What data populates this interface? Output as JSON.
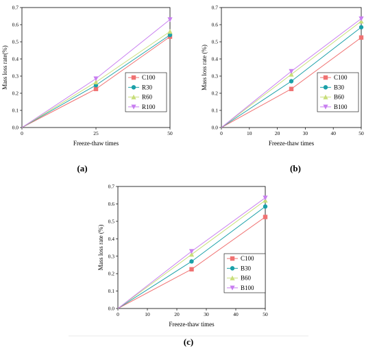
{
  "palette": {
    "C100": "#f07272",
    "R30": "#1aa0a8",
    "R60": "#c8de7a",
    "R100": "#c87ef0",
    "B30": "#1aa0a8",
    "B60": "#c8de7a",
    "B100": "#c87ef0"
  },
  "chart_data": [
    {
      "type": "line",
      "caption": "(a)",
      "xlabel": "Freeze-thaw times",
      "ylabel": "Mass loss rate(%)",
      "x": [
        0,
        25,
        50
      ],
      "xticks": [
        0,
        25,
        50
      ],
      "xlim": [
        0,
        50
      ],
      "ylim": [
        0,
        0.7
      ],
      "yticks": [
        0.0,
        0.1,
        0.2,
        0.3,
        0.4,
        0.5,
        0.6,
        0.7
      ],
      "legend_position": "center-right",
      "series": [
        {
          "name": "C100",
          "values": [
            0,
            0.225,
            0.53
          ],
          "marker": "square"
        },
        {
          "name": "R30",
          "values": [
            0,
            0.247,
            0.54
          ],
          "marker": "circle"
        },
        {
          "name": "R60",
          "values": [
            0,
            0.265,
            0.56
          ],
          "marker": "triangle-up"
        },
        {
          "name": "R100",
          "values": [
            0,
            0.285,
            0.63
          ],
          "marker": "triangle-down"
        }
      ]
    },
    {
      "type": "line",
      "caption": "(b)",
      "xlabel": "Freeze-thaw times",
      "ylabel": "Mass loss rate (%)",
      "x": [
        0,
        25,
        50
      ],
      "xticks": [
        0,
        10,
        20,
        30,
        40,
        50
      ],
      "xlim": [
        0,
        50
      ],
      "ylim": [
        0,
        0.7
      ],
      "yticks": [
        0.0,
        0.1,
        0.2,
        0.3,
        0.4,
        0.5,
        0.6,
        0.7
      ],
      "legend_position": "center-right",
      "series": [
        {
          "name": "C100",
          "values": [
            0,
            0.225,
            0.525
          ],
          "marker": "square"
        },
        {
          "name": "B30",
          "values": [
            0,
            0.27,
            0.585
          ],
          "marker": "circle"
        },
        {
          "name": "B60",
          "values": [
            0,
            0.31,
            0.62
          ],
          "marker": "triangle-up"
        },
        {
          "name": "B100",
          "values": [
            0,
            0.328,
            0.635
          ],
          "marker": "triangle-down"
        }
      ]
    },
    {
      "type": "line",
      "caption": "(c)",
      "xlabel": "Freeze-thaw times",
      "ylabel": "Mass loss rate (%)",
      "x": [
        0,
        25,
        50
      ],
      "xticks": [
        0,
        10,
        20,
        30,
        40,
        50
      ],
      "xlim": [
        0,
        50
      ],
      "ylim": [
        0,
        0.7
      ],
      "yticks": [
        0.0,
        0.1,
        0.2,
        0.3,
        0.4,
        0.5,
        0.6,
        0.7
      ],
      "legend_position": "center-right",
      "series": [
        {
          "name": "C100",
          "values": [
            0,
            0.225,
            0.525
          ],
          "marker": "square"
        },
        {
          "name": "B30",
          "values": [
            0,
            0.27,
            0.585
          ],
          "marker": "circle"
        },
        {
          "name": "B60",
          "values": [
            0,
            0.31,
            0.62
          ],
          "marker": "triangle-up"
        },
        {
          "name": "B100",
          "values": [
            0,
            0.328,
            0.635
          ],
          "marker": "triangle-down"
        }
      ]
    }
  ]
}
